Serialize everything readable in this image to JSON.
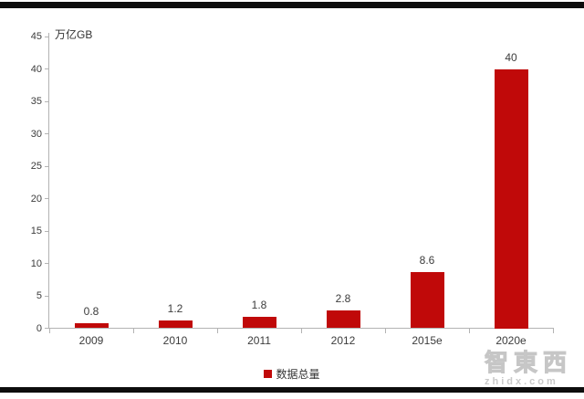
{
  "chart_data": {
    "type": "bar",
    "title": "",
    "unit_label": "万亿GB",
    "categories": [
      "2009",
      "2010",
      "2011",
      "2012",
      "2015e",
      "2020e"
    ],
    "values": [
      0.8,
      1.2,
      1.8,
      2.8,
      8.6,
      40
    ],
    "value_labels": [
      "0.8",
      "1.2",
      "1.8",
      "2.8",
      "8.6",
      "40"
    ],
    "series_name": "数据总量",
    "ylim": [
      0,
      45
    ],
    "yticks": [
      0,
      5,
      10,
      15,
      20,
      25,
      30,
      35,
      40,
      45
    ],
    "bar_color": "#c00909",
    "grid": false,
    "legend_position": "bottom-center"
  },
  "legend": {
    "label": "数据总量",
    "swatch_color": "#c00909"
  },
  "watermark": {
    "cjk": "智東西",
    "domain": "zhidx.com"
  },
  "frame": {
    "border_color": "#0d0d0d"
  }
}
